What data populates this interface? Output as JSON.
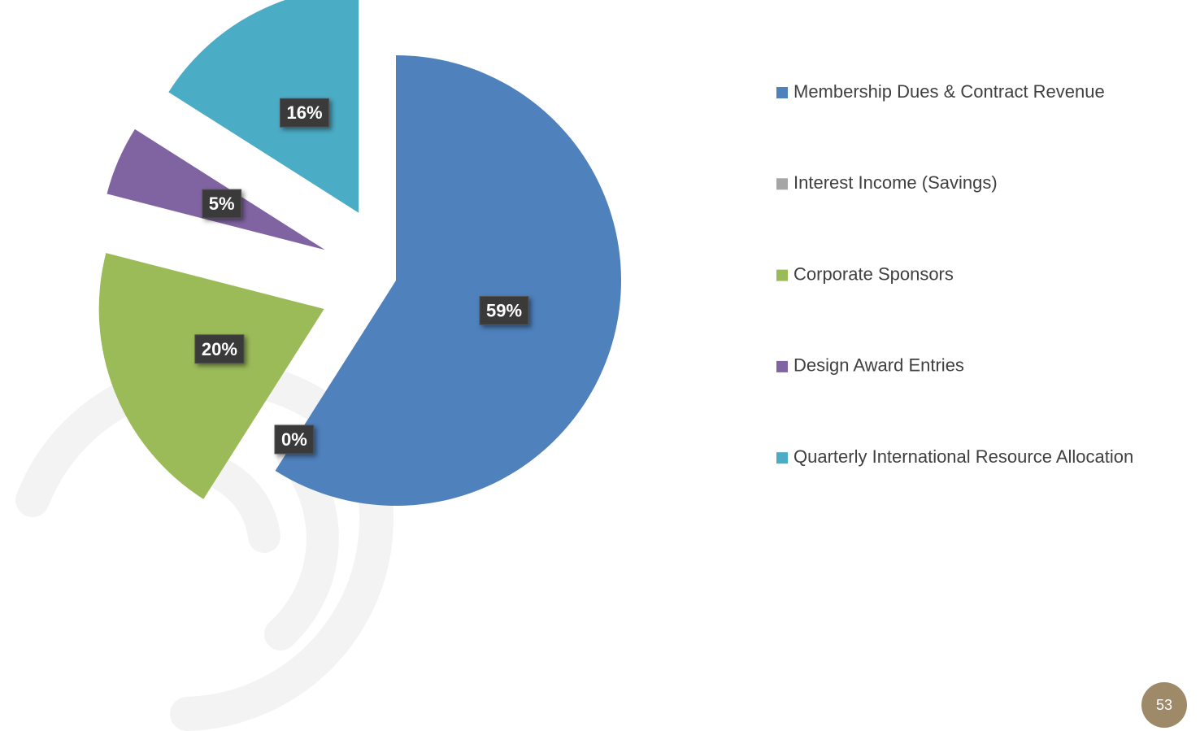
{
  "chart_data": {
    "type": "pie",
    "categories": [
      "Membership Dues & Contract Revenue",
      "Interest Income (Savings)",
      "Corporate Sponsors",
      "Design Award Entries",
      "Quarterly International Resource Allocation"
    ],
    "values": [
      59,
      0,
      20,
      5,
      16
    ],
    "value_labels": [
      "59%",
      "0%",
      "20%",
      "5%",
      "16%"
    ],
    "colors": [
      "#4f81bd",
      "#a5a5a5",
      "#9bbb59",
      "#8064a2",
      "#4bacc6"
    ],
    "legend": "right"
  },
  "page_number": 53
}
